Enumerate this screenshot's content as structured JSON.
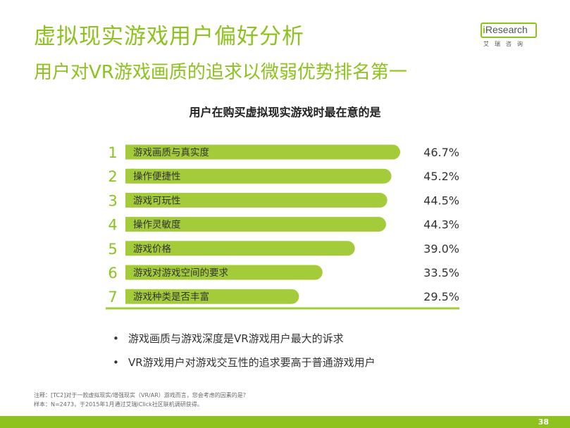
{
  "header": {
    "title": "虚拟现实游戏用户偏好分析",
    "subtitle": "用户对VR游戏画质的追求以微弱优势排名第一"
  },
  "logo": {
    "brand_i": "i",
    "brand_rest": "Research",
    "cn": "艾瑞咨询"
  },
  "chart_data": {
    "type": "bar",
    "orientation": "horizontal",
    "title": "用户在购买虚拟现实游戏时最在意的是",
    "ranks": [
      "1",
      "2",
      "3",
      "4",
      "5",
      "6",
      "7"
    ],
    "categories": [
      "游戏画质与真实度",
      "操作便捷性",
      "游戏可玩性",
      "操作灵敏度",
      "游戏价格",
      "游戏对游戏空间的要求",
      "游戏种类是否丰富"
    ],
    "values": [
      46.7,
      45.2,
      44.5,
      44.3,
      39.0,
      33.5,
      29.5
    ],
    "value_labels": [
      "46.7%",
      "45.2%",
      "44.5%",
      "44.3%",
      "39.0%",
      "33.5%",
      "29.5%"
    ],
    "unit": "%",
    "xlim": [
      0,
      55
    ],
    "grid": false,
    "legend": "none",
    "bar_color": "#a4cc3a",
    "rank_color": "#8dc21f"
  },
  "bullets": [
    "游戏画质与游戏深度是VR游戏用户最大的诉求",
    "VR游戏用户对游戏交互性的追求要高于普通游戏用户"
  ],
  "bullet_symbol": "•",
  "notes": [
    "注释：[TC2]对于一款虚拟现实/增强现实（VR/AR）游戏而言，您会考虑的因素的是？",
    "样本：N=2473，于2015年1月通过艾瑞iClick社区联机调研获得。"
  ],
  "page_number": "38",
  "colors": {
    "accent": "#8dc21f",
    "text": "#333333"
  }
}
